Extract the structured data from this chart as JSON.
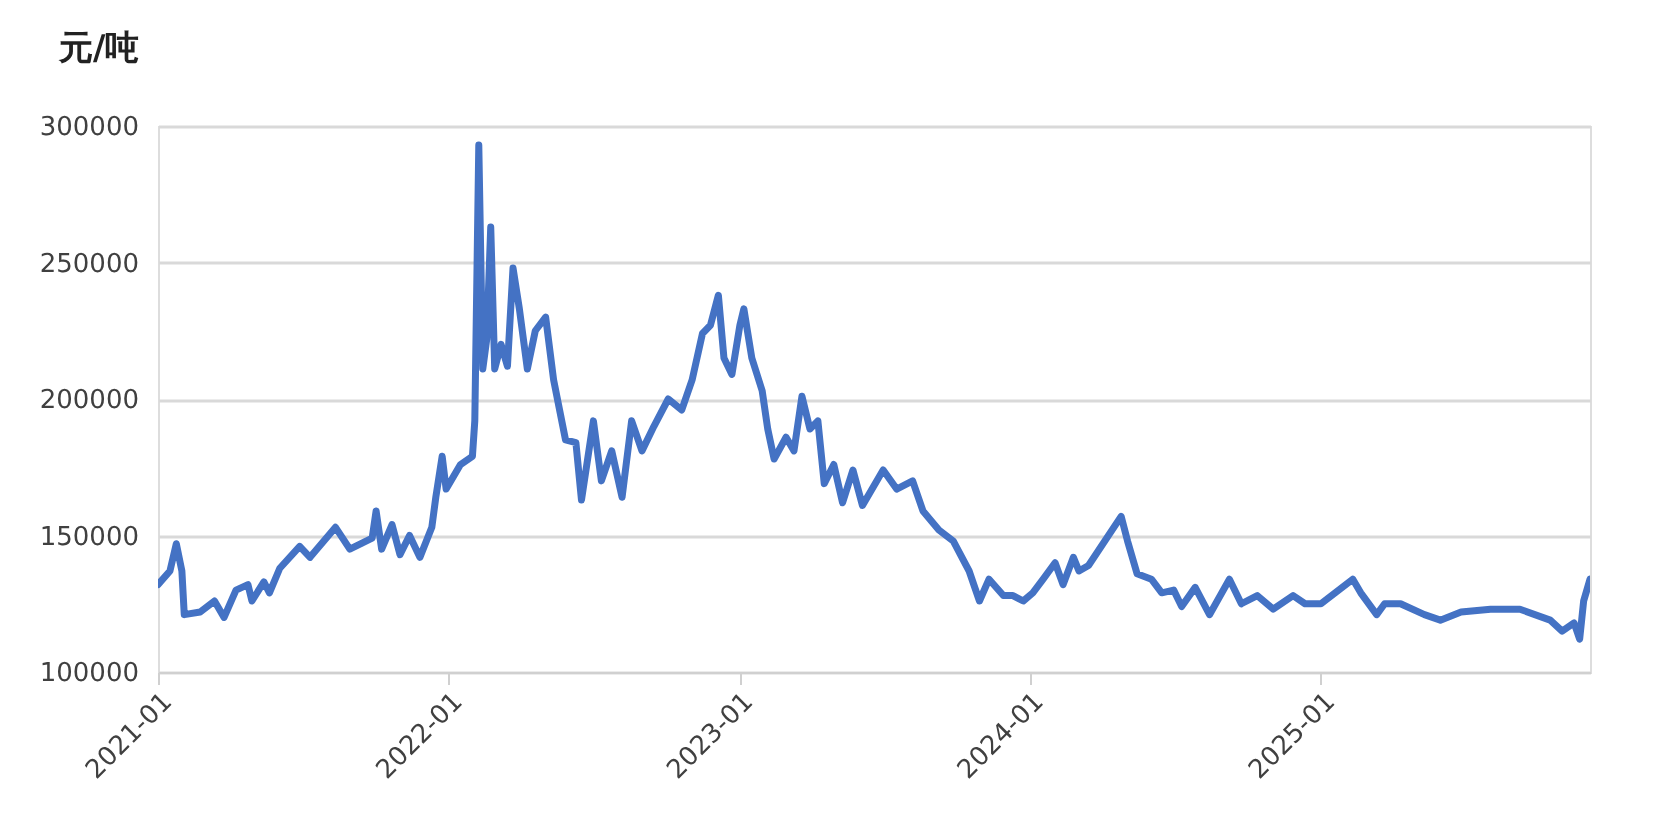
{
  "chart_data": {
    "type": "line",
    "ylabel": "元/吨",
    "color": "#4472c4",
    "xlim": [
      "2021-01-01",
      "2025-12-05"
    ],
    "xticks": [
      "2021-01",
      "2022-01",
      "2023-01",
      "2024-01",
      "2025-01"
    ],
    "ylim": [
      100000,
      300000
    ],
    "yticks": [
      100000,
      150000,
      200000,
      250000,
      300000
    ],
    "grid": "y",
    "marker": "none",
    "line_style": "solid",
    "x": [
      "2021-01-01",
      "2021-01-16",
      "2021-01-24",
      "2021-01-31",
      "2021-02-03",
      "2021-02-23",
      "2021-03-13",
      "2021-03-25",
      "2021-04-09",
      "2021-04-24",
      "2021-04-29",
      "2021-05-14",
      "2021-05-21",
      "2021-06-03",
      "2021-06-28",
      "2021-07-11",
      "2021-08-12",
      "2021-08-30",
      "2021-09-27",
      "2021-10-02",
      "2021-10-09",
      "2021-10-22",
      "2021-11-01",
      "2021-11-13",
      "2021-11-26",
      "2021-12-11",
      "2021-12-16",
      "2021-12-24",
      "2021-12-29",
      "2022-01-16",
      "2022-01-31",
      "2022-02-03",
      "2022-02-08",
      "2022-02-13",
      "2022-02-18",
      "2022-02-23",
      "2022-02-28",
      "2022-03-08",
      "2022-03-16",
      "2022-03-23",
      "2022-03-31",
      "2022-04-10",
      "2022-04-20",
      "2022-05-03",
      "2022-05-13",
      "2022-05-28",
      "2022-06-10",
      "2022-06-17",
      "2022-07-02",
      "2022-07-12",
      "2022-07-25",
      "2022-08-07",
      "2022-08-19",
      "2022-09-01",
      "2022-09-16",
      "2022-10-04",
      "2022-10-21",
      "2022-11-03",
      "2022-11-16",
      "2022-11-26",
      "2022-12-06",
      "2022-12-13",
      "2022-12-23",
      "2023-01-02",
      "2023-01-07",
      "2023-01-17",
      "2023-01-30",
      "2023-02-06",
      "2023-02-14",
      "2023-03-01",
      "2023-03-11",
      "2023-03-21",
      "2023-03-31",
      "2023-04-10",
      "2023-04-18",
      "2023-04-30",
      "2023-05-11",
      "2023-05-24",
      "2023-06-05",
      "2023-07-01",
      "2023-07-18",
      "2023-08-07",
      "2023-08-20",
      "2023-09-09",
      "2023-09-27",
      "2023-10-17",
      "2023-10-30",
      "2023-11-11",
      "2023-11-29",
      "2023-12-11",
      "2023-12-24",
      "2024-01-05",
      "2024-01-18",
      "2024-02-02",
      "2024-02-12",
      "2024-02-25",
      "2024-03-03",
      "2024-03-15",
      "2024-04-25",
      "2024-05-03",
      "2024-05-15",
      "2024-06-02",
      "2024-06-15",
      "2024-06-30",
      "2024-07-10",
      "2024-07-27",
      "2024-08-14",
      "2024-09-08",
      "2024-09-23",
      "2024-10-13",
      "2024-11-02",
      "2024-11-27",
      "2024-12-12",
      "2025-01-01",
      "2025-02-10",
      "2025-02-20",
      "2025-03-12",
      "2025-03-22",
      "2025-04-11",
      "2025-05-11",
      "2025-05-31",
      "2025-06-26",
      "2025-08-02",
      "2025-09-08",
      "2025-10-16",
      "2025-10-31",
      "2025-11-15",
      "2025-11-22",
      "2025-11-27",
      "2025-12-05"
    ],
    "values": [
      132000,
      137000,
      147000,
      137000,
      121000,
      122000,
      126000,
      120000,
      130000,
      132000,
      126000,
      133000,
      129000,
      138000,
      146000,
      142000,
      153000,
      145000,
      149000,
      159000,
      145000,
      154000,
      143000,
      150000,
      142000,
      153000,
      164000,
      179000,
      167000,
      176000,
      179000,
      192000,
      293000,
      211000,
      222000,
      263000,
      211000,
      220000,
      212000,
      248000,
      233000,
      211000,
      225000,
      230000,
      207000,
      185000,
      184000,
      163000,
      192000,
      170000,
      181000,
      164000,
      192000,
      181000,
      190000,
      200000,
      196000,
      207000,
      224000,
      227000,
      238000,
      215000,
      209000,
      227000,
      233000,
      215000,
      203000,
      189000,
      178000,
      186000,
      181000,
      201000,
      189000,
      192000,
      169000,
      176000,
      162000,
      174000,
      161000,
      174000,
      167000,
      170000,
      159000,
      152000,
      148000,
      137000,
      126000,
      134000,
      128000,
      128000,
      126000,
      129000,
      134000,
      140000,
      132000,
      142000,
      137000,
      139000,
      157000,
      148000,
      136000,
      134000,
      129000,
      130000,
      124000,
      131000,
      121000,
      134000,
      125000,
      128000,
      123000,
      128000,
      125000,
      125000,
      134000,
      129000,
      121000,
      125000,
      125000,
      121000,
      119000,
      122000,
      123000,
      123000,
      119000,
      115000,
      118000,
      112000,
      126000,
      134000
    ]
  }
}
